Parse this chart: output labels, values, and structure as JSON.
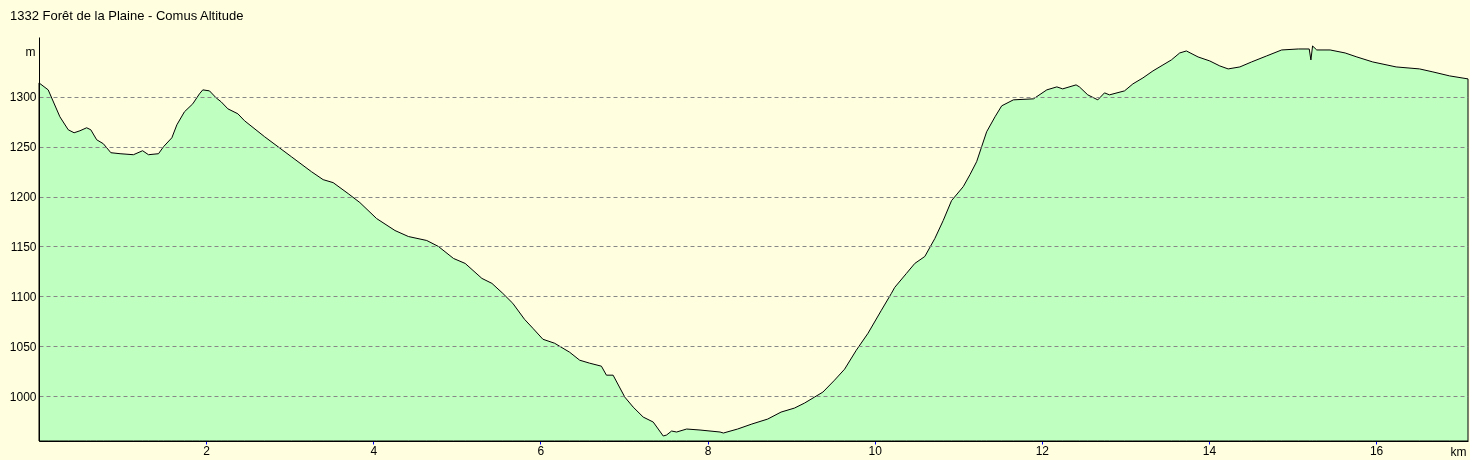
{
  "chart_data": {
    "type": "area",
    "title": "1332 Forêt de la Plaine - Comus Altitude",
    "xlabel": "km",
    "ylabel": "m",
    "x": [
      0,
      0.11,
      0.25,
      0.35,
      0.42,
      0.49,
      0.57,
      0.62,
      0.69,
      0.77,
      0.86,
      0.97,
      1.13,
      1.24,
      1.31,
      1.43,
      1.49,
      1.59,
      1.65,
      1.74,
      1.84,
      1.92,
      1.96,
      2.04,
      2.12,
      2.18,
      2.26,
      2.38,
      2.46,
      2.7,
      2.86,
      3.02,
      3.26,
      3.4,
      3.52,
      3.7,
      3.84,
      4.04,
      4.26,
      4.42,
      4.64,
      4.78,
      4.96,
      5.1,
      5.3,
      5.42,
      5.55,
      5.67,
      5.81,
      5.91,
      6.03,
      6.17,
      6.35,
      6.47,
      6.59,
      6.73,
      6.79,
      6.87,
      7.01,
      7.11,
      7.23,
      7.35,
      7.41,
      7.47,
      7.51,
      7.57,
      7.63,
      7.75,
      7.91,
      8.15,
      8.19,
      8.36,
      8.53,
      8.72,
      8.88,
      9.04,
      9.16,
      9.28,
      9.38,
      9.52,
      9.64,
      9.78,
      9.92,
      10.08,
      10.2,
      10.24,
      10.38,
      10.48,
      10.6,
      10.72,
      10.82,
      10.92,
      11.06,
      11.14,
      11.22,
      11.28,
      11.34,
      11.44,
      11.52,
      11.66,
      11.9,
      12.06,
      12.18,
      12.25,
      12.41,
      12.45,
      12.55,
      12.67,
      12.75,
      12.81,
      12.99,
      13.09,
      13.21,
      13.33,
      13.45,
      13.55,
      13.65,
      13.73,
      13.87,
      14.01,
      14.13,
      14.23,
      14.37,
      14.51,
      14.69,
      14.87,
      15.07,
      15.2,
      15.22,
      15.24,
      15.29,
      15.45,
      15.63,
      15.77,
      15.96,
      16.24,
      16.52,
      16.68,
      16.88,
      17.1
    ],
    "series": [
      {
        "color": "#bfffbf",
        "values": [
          1314,
          1307,
          1280,
          1267,
          1264,
          1266,
          1269,
          1267,
          1257,
          1253,
          1244,
          1243,
          1242,
          1246,
          1242,
          1243,
          1250,
          1259,
          1272,
          1285,
          1293,
          1303,
          1307,
          1306,
          1299,
          1295,
          1288,
          1283,
          1276,
          1260,
          1250,
          1240,
          1225,
          1217,
          1214,
          1203,
          1194,
          1178,
          1166,
          1160,
          1156,
          1150,
          1138,
          1133,
          1118,
          1113,
          1103,
          1093,
          1077,
          1068,
          1057,
          1053,
          1044,
          1036,
          1033,
          1030,
          1021,
          1021,
          999,
          989,
          979,
          974,
          967,
          960,
          961,
          965,
          964,
          967,
          966,
          964,
          963,
          967,
          972,
          977,
          984,
          988,
          993,
          999,
          1004,
          1016,
          1027,
          1046,
          1063,
          1086,
          1103,
          1109,
          1123,
          1133,
          1140,
          1158,
          1176,
          1196,
          1210,
          1222,
          1235,
          1250,
          1265,
          1280,
          1291,
          1297,
          1298,
          1307,
          1310,
          1308,
          1312,
          1310,
          1302,
          1297,
          1304,
          1302,
          1306,
          1313,
          1319,
          1326,
          1332,
          1337,
          1344,
          1346,
          1340,
          1336,
          1331,
          1328,
          1330,
          1335,
          1341,
          1347,
          1348,
          1348,
          1337,
          1351,
          1347,
          1347,
          1344,
          1340,
          1335,
          1330,
          1328,
          1325,
          1321,
          1318
        ]
      }
    ],
    "xlim": [
      0,
      17.1
    ],
    "ylim": [
      955,
      1360
    ],
    "xticks": [
      2,
      4,
      6,
      8,
      10,
      12,
      14,
      16
    ],
    "yticks": [
      1000,
      1050,
      1100,
      1150,
      1200,
      1250,
      1300
    ],
    "grid": "y"
  }
}
